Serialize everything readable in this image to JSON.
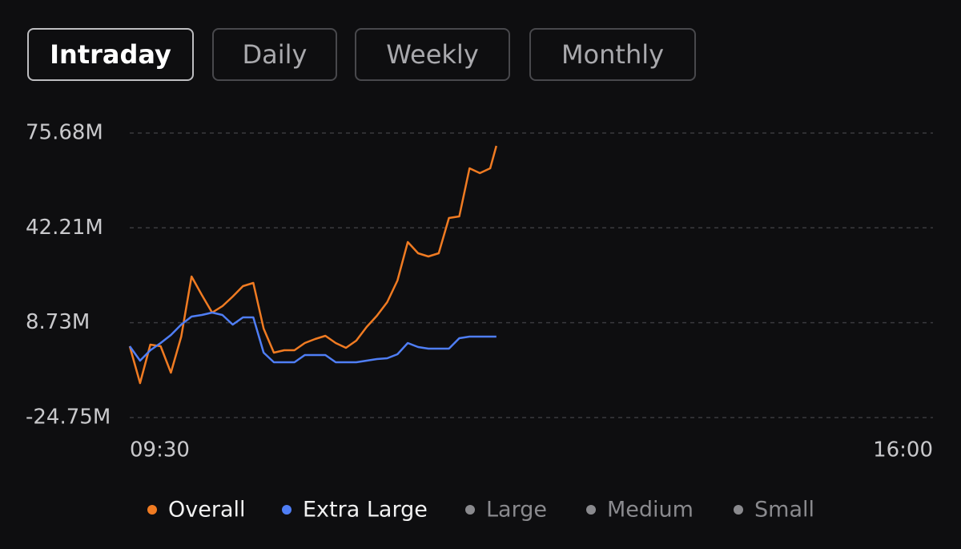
{
  "tabs": [
    "Intraday",
    "Daily",
    "Weekly",
    "Monthly"
  ],
  "active_tab": 0,
  "chart_data": {
    "type": "line",
    "x": [
      "09:30",
      "09:35",
      "09:40",
      "09:45",
      "09:50",
      "09:55",
      "10:00",
      "10:05",
      "10:10",
      "10:15",
      "10:20",
      "10:25",
      "10:30",
      "10:35",
      "10:40",
      "10:45",
      "10:50",
      "10:55",
      "11:00",
      "11:05",
      "11:10",
      "11:15",
      "11:20",
      "11:25",
      "11:30",
      "11:35",
      "11:40",
      "11:45",
      "11:50",
      "11:55",
      "12:00",
      "12:05",
      "12:10",
      "12:15",
      "12:20",
      "12:25",
      "12:28"
    ],
    "xlim": [
      "09:30",
      "16:00"
    ],
    "xticks": [
      "09:30",
      "16:00"
    ],
    "ylim": [
      -24.75,
      75.68
    ],
    "yticks": [
      {
        "value": -24.75,
        "label": "-24.75M"
      },
      {
        "value": 8.73,
        "label": "8.73M"
      },
      {
        "value": 42.21,
        "label": "42.21M"
      },
      {
        "value": 75.68,
        "label": "75.68M"
      }
    ],
    "grid": true,
    "series": [
      {
        "name": "Overall",
        "color": "#f07b22",
        "values": [
          0.43,
          -12.58,
          1.0,
          0.43,
          -8.9,
          3.83,
          25.04,
          18.54,
          12.31,
          14.58,
          17.97,
          21.65,
          22.78,
          6.66,
          -1.83,
          -0.98,
          -0.98,
          1.56,
          2.98,
          4.11,
          1.56,
          -0.13,
          2.41,
          7.22,
          11.18,
          15.99,
          23.63,
          37.21,
          33.25,
          32.12,
          33.25,
          45.69,
          46.26,
          63.23,
          61.54,
          63.23,
          71.15
        ]
      },
      {
        "name": "Extra Large",
        "color": "#4f7ef5",
        "values": [
          0.43,
          -4.66,
          -0.98,
          1.56,
          4.39,
          8.07,
          10.9,
          11.47,
          12.31,
          11.47,
          8.07,
          10.62,
          10.62,
          -1.83,
          -5.23,
          -5.23,
          -5.23,
          -2.68,
          -2.68,
          -2.68,
          -5.23,
          -5.23,
          -5.23,
          -4.66,
          -4.09,
          -3.81,
          -2.4,
          1.56,
          0.15,
          -0.42,
          -0.42,
          -0.42,
          3.26,
          3.83,
          3.83,
          3.83,
          3.83
        ]
      },
      {
        "name": "Large",
        "color": "#8a8a8e",
        "values": [
          null,
          null,
          null,
          null,
          null,
          null,
          null,
          null,
          null,
          null,
          null,
          null,
          null,
          null,
          null,
          null,
          null,
          null,
          null,
          null,
          null,
          null,
          null,
          null,
          null,
          null,
          null,
          null,
          null,
          null,
          null,
          null,
          null,
          null,
          null,
          null,
          null
        ]
      },
      {
        "name": "Medium",
        "color": "#8a8a8e",
        "values": [
          null,
          null,
          null,
          null,
          null,
          null,
          null,
          null,
          null,
          null,
          null,
          null,
          null,
          null,
          null,
          null,
          null,
          null,
          null,
          null,
          null,
          null,
          null,
          null,
          null,
          null,
          null,
          null,
          null,
          null,
          null,
          null,
          null,
          null,
          null,
          null,
          null
        ]
      },
      {
        "name": "Small",
        "color": "#8a8a8e",
        "values": [
          null,
          null,
          null,
          null,
          null,
          null,
          null,
          null,
          null,
          null,
          null,
          null,
          null,
          null,
          null,
          null,
          null,
          null,
          null,
          null,
          null,
          null,
          null,
          null,
          null,
          null,
          null,
          null,
          null,
          null,
          null,
          null,
          null,
          null,
          null,
          null,
          null
        ]
      }
    ]
  }
}
